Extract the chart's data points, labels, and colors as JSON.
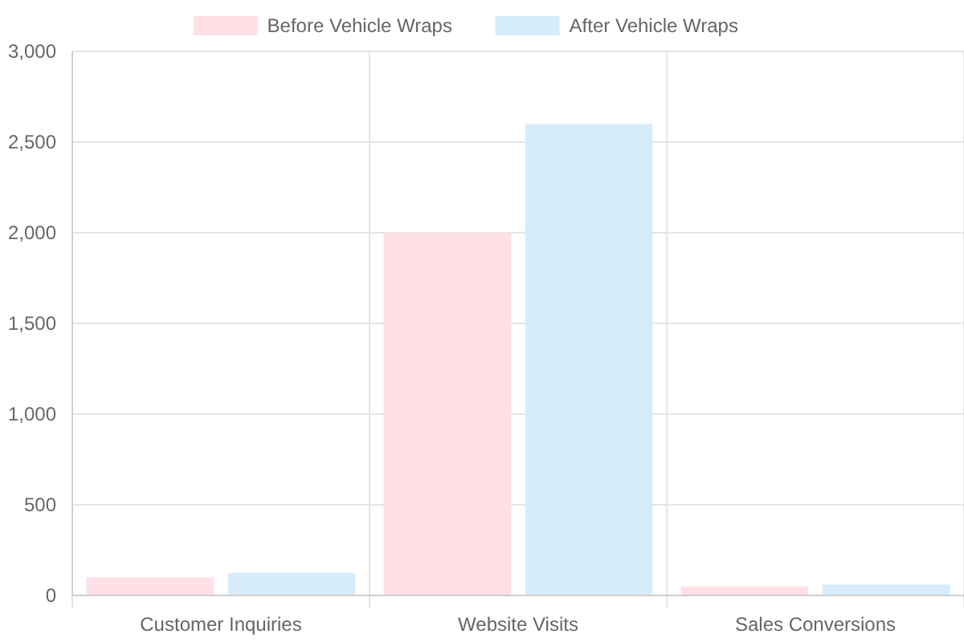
{
  "chart_data": {
    "type": "bar",
    "categories": [
      "Customer Inquiries",
      "Website Visits",
      "Sales Conversions"
    ],
    "series": [
      {
        "name": "Before Vehicle Wraps",
        "color": "#ffe0e6",
        "values": [
          100,
          2000,
          50
        ]
      },
      {
        "name": "After Vehicle Wraps",
        "color": "#d7ecfb",
        "values": [
          125,
          2600,
          60
        ]
      }
    ],
    "ylim": [
      0,
      3000
    ],
    "yticks": [
      {
        "value": 0,
        "label": "0"
      },
      {
        "value": 500,
        "label": "500"
      },
      {
        "value": 1000,
        "label": "1,000"
      },
      {
        "value": 1500,
        "label": "1,500"
      },
      {
        "value": 2000,
        "label": "2,000"
      },
      {
        "value": 2500,
        "label": "2,500"
      },
      {
        "value": 3000,
        "label": "3,000"
      }
    ],
    "grid": true,
    "legend": "top"
  }
}
